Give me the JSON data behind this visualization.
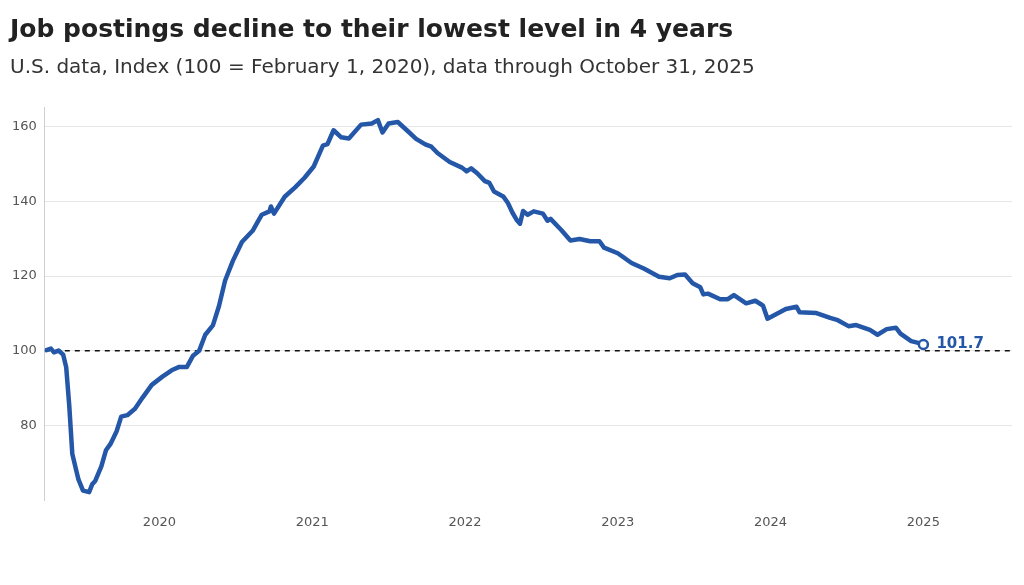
{
  "chart_data": {
    "type": "line",
    "title": "Job postings decline to their lowest level in 4 years",
    "subtitle": "U.S. data, Index (100 = February 1, 2020), data through October 31, 2025",
    "x": [
      2019.26,
      2019.29,
      2019.31,
      2019.34,
      2019.37,
      2019.39,
      2019.41,
      2019.43,
      2019.47,
      2019.5,
      2019.54,
      2019.56,
      2019.58,
      2019.62,
      2019.65,
      2019.68,
      2019.72,
      2019.75,
      2019.79,
      2019.84,
      2019.89,
      2019.95,
      2020.02,
      2020.08,
      2020.13,
      2020.18,
      2020.22,
      2020.26,
      2020.3,
      2020.35,
      2020.39,
      2020.43,
      2020.48,
      2020.54,
      2020.61,
      2020.67,
      2020.72,
      2020.73,
      2020.75,
      2020.82,
      2020.89,
      2020.95,
      2021.01,
      2021.07,
      2021.1,
      2021.14,
      2021.19,
      2021.24,
      2021.32,
      2021.39,
      2021.43,
      2021.46,
      2021.5,
      2021.56,
      2021.63,
      2021.68,
      2021.74,
      2021.78,
      2021.82,
      2021.9,
      2021.98,
      2022.01,
      2022.04,
      2022.08,
      2022.13,
      2022.16,
      2022.19,
      2022.25,
      2022.28,
      2022.31,
      2022.34,
      2022.36,
      2022.38,
      2022.41,
      2022.45,
      2022.51,
      2022.54,
      2022.56,
      2022.63,
      2022.69,
      2022.75,
      2022.82,
      2022.88,
      2022.91,
      2023.0,
      2023.09,
      2023.17,
      2023.27,
      2023.34,
      2023.39,
      2023.44,
      2023.49,
      2023.54,
      2023.56,
      2023.59,
      2023.67,
      2023.72,
      2023.76,
      2023.84,
      2023.9,
      2023.95,
      2023.98,
      2024.06,
      2024.1,
      2024.17,
      2024.19,
      2024.3,
      2024.39,
      2024.44,
      2024.51,
      2024.56,
      2024.65,
      2024.7,
      2024.76,
      2024.82,
      2024.85,
      2024.92,
      2024.96,
      2025.0
    ],
    "series": [
      {
        "color": "#2457a7",
        "values": [
          100.2,
          100.6,
          99.6,
          100.1,
          99.0,
          95.6,
          85.3,
          72.4,
          65.6,
          62.6,
          62.2,
          64.3,
          65.2,
          69.1,
          73.4,
          75.1,
          78.5,
          82.4,
          82.8,
          84.5,
          87.5,
          90.9,
          93.1,
          94.8,
          95.7,
          95.7,
          98.7,
          100.0,
          104.3,
          106.8,
          112.0,
          118.8,
          124.0,
          129.1,
          132.1,
          136.4,
          137.3,
          138.6,
          136.7,
          141.2,
          143.8,
          146.3,
          149.3,
          154.9,
          155.3,
          159.0,
          157.1,
          156.8,
          160.5,
          160.8,
          161.7,
          158.4,
          160.8,
          161.2,
          158.6,
          156.7,
          155.2,
          154.6,
          152.9,
          150.5,
          149.0,
          148.0,
          148.8,
          147.5,
          145.4,
          144.9,
          142.6,
          141.3,
          139.6,
          137.0,
          134.9,
          134.0,
          137.4,
          136.4,
          137.3,
          136.7,
          134.8,
          135.3,
          132.3,
          129.5,
          129.9,
          129.3,
          129.3,
          127.6,
          126.1,
          123.5,
          122.0,
          119.8,
          119.4,
          120.3,
          120.4,
          118.1,
          117.0,
          115.1,
          115.3,
          113.8,
          113.8,
          114.9,
          112.7,
          113.4,
          112.1,
          108.6,
          110.3,
          111.2,
          111.8,
          110.3,
          110.1,
          108.8,
          108.2,
          106.6,
          106.9,
          105.6,
          104.3,
          105.8,
          106.2,
          104.6,
          102.6,
          102.2,
          101.7
        ]
      }
    ],
    "xlim": [
      2019.25,
      2025.58
    ],
    "xticks": [
      2020,
      2021,
      2022,
      2023,
      2024,
      2025
    ],
    "ylim": [
      60,
      165
    ],
    "yticks": [
      80,
      100,
      120,
      140,
      160
    ],
    "grid": "y",
    "legend": false,
    "marker": "none",
    "line_style": "solid",
    "ref_lines": [
      {
        "axis": "y",
        "value": 100,
        "color": "#111111",
        "line_style": "dashed"
      }
    ],
    "annotations": [
      {
        "text": "101.7",
        "x": 2025.0,
        "y": 101.7
      }
    ]
  }
}
